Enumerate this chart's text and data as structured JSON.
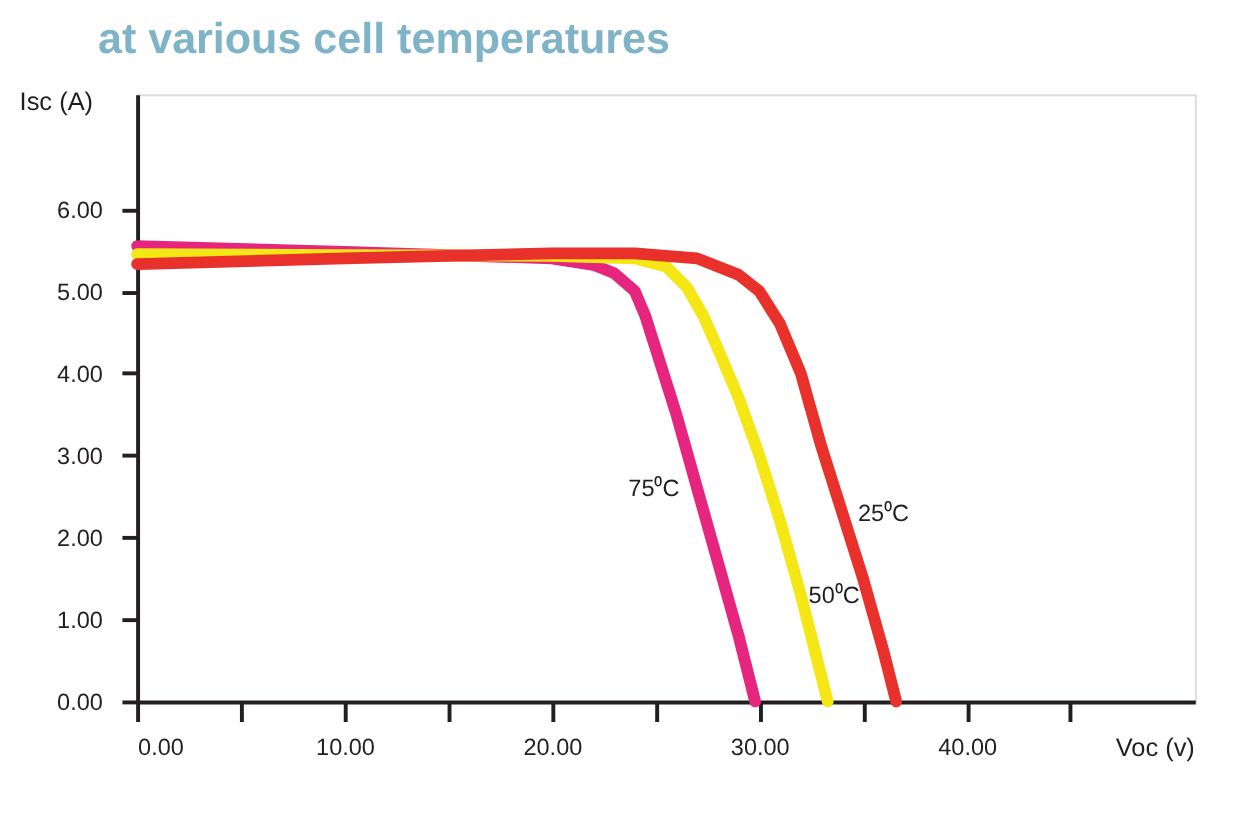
{
  "chart_data": {
    "type": "line",
    "title": "at various cell temperatures",
    "xlabel": "Voc (v)",
    "ylabel": "Isc (A)",
    "xlim": [
      0,
      51
    ],
    "ylim": [
      0,
      7.4
    ],
    "xticks": [
      {
        "value": 0,
        "label": "0.00"
      },
      {
        "value": 5,
        "label": null
      },
      {
        "value": 10,
        "label": "10.00"
      },
      {
        "value": 15,
        "label": null
      },
      {
        "value": 20,
        "label": "20.00"
      },
      {
        "value": 25,
        "label": null
      },
      {
        "value": 30,
        "label": "30.00"
      },
      {
        "value": 35,
        "label": null
      },
      {
        "value": 40,
        "label": "40.00"
      },
      {
        "value": 45,
        "label": null
      }
    ],
    "yticks": [
      {
        "value": 0,
        "label": "0.00"
      },
      {
        "value": 1,
        "label": "1.00"
      },
      {
        "value": 2,
        "label": "2.00"
      },
      {
        "value": 3,
        "label": "3.00"
      },
      {
        "value": 4,
        "label": "4.00"
      },
      {
        "value": 5,
        "label": "5.00"
      },
      {
        "value": 6,
        "label": "6.00"
      }
    ],
    "grid": false,
    "marker": "none",
    "line_style": "solid",
    "series": [
      {
        "name": "75⁰C",
        "color": "#e6257e",
        "x": [
          0,
          10,
          15,
          20,
          22,
          23,
          24,
          24.5,
          25,
          26,
          27,
          28,
          29,
          29.8
        ],
        "values": [
          5.55,
          5.48,
          5.44,
          5.4,
          5.32,
          5.22,
          5.0,
          4.7,
          4.3,
          3.5,
          2.6,
          1.7,
          0.8,
          0
        ]
      },
      {
        "name": "50⁰C",
        "color": "#f5e616",
        "x": [
          0,
          10,
          20,
          24,
          25.5,
          26.5,
          27.3,
          28,
          29,
          30,
          31,
          32,
          33.3
        ],
        "values": [
          5.45,
          5.44,
          5.43,
          5.4,
          5.3,
          5.05,
          4.7,
          4.3,
          3.7,
          3.0,
          2.2,
          1.3,
          0
        ]
      },
      {
        "name": "25⁰C",
        "color": "#e8312a",
        "x": [
          0,
          10,
          20,
          24,
          27,
          29,
          30,
          31,
          32,
          33,
          34,
          35,
          36,
          36.6
        ],
        "values": [
          5.33,
          5.4,
          5.46,
          5.46,
          5.4,
          5.2,
          5.0,
          4.6,
          4.0,
          3.1,
          2.3,
          1.5,
          0.6,
          0
        ]
      }
    ]
  }
}
